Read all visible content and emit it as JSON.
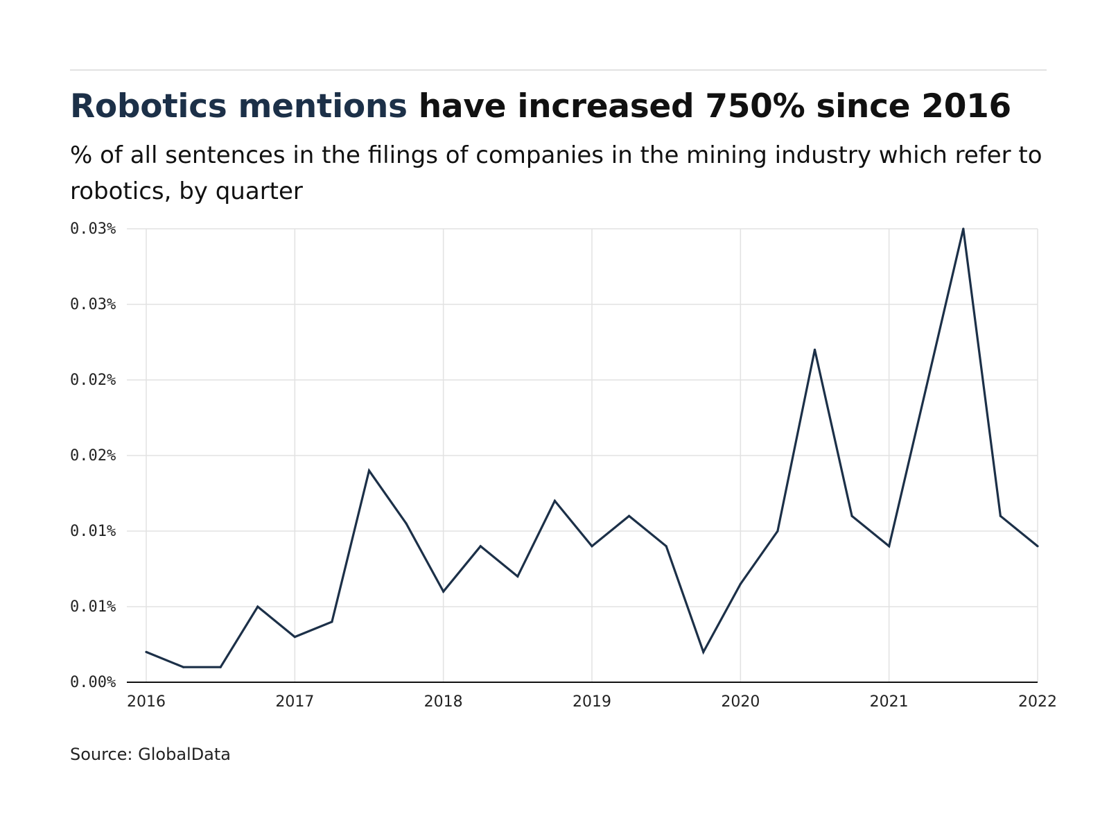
{
  "header": {
    "title_highlight": "Robotics mentions",
    "title_rest": " have increased 750% since 2016",
    "subtitle": "% of all sentences in the filings of companies in the mining industry which refer to robotics, by quarter"
  },
  "footer": {
    "source": "Source: GlobalData"
  },
  "colors": {
    "line": "#1c3048",
    "grid": "#e2e2e2",
    "axis": "#111111",
    "title_highlight": "#1c3048"
  },
  "chart_data": {
    "type": "line",
    "title": "Robotics mentions have increased 750% since 2016",
    "subtitle": "% of all sentences in the filings of companies in the mining industry which refer to robotics, by quarter",
    "xlabel": "",
    "ylabel": "",
    "x_ticks": [
      "2016",
      "2017",
      "2018",
      "2019",
      "2020",
      "2021",
      "2022"
    ],
    "y_ticks": [
      "0.00%",
      "0.01%",
      "0.01%",
      "0.02%",
      "0.02%",
      "0.03%",
      "0.03%"
    ],
    "ylim": [
      0,
      0.03
    ],
    "grid": true,
    "series": [
      {
        "x": [
          "2016 Q1",
          "2016 Q2",
          "2016 Q3",
          "2016 Q4",
          "2017 Q1",
          "2017 Q2",
          "2017 Q3",
          "2017 Q4",
          "2018 Q1",
          "2018 Q2",
          "2018 Q3",
          "2018 Q4",
          "2019 Q1",
          "2019 Q2",
          "2019 Q3",
          "2019 Q4",
          "2020 Q1",
          "2020 Q2",
          "2020 Q3",
          "2020 Q4",
          "2021 Q1",
          "2021 Q2",
          "2021 Q3",
          "2021 Q4",
          "2022 Q1"
        ],
        "values": [
          0.002,
          0.001,
          0.001,
          0.005,
          0.003,
          0.004,
          0.014,
          0.0105,
          0.006,
          0.009,
          0.007,
          0.012,
          0.009,
          0.011,
          0.009,
          0.002,
          0.0065,
          0.01,
          0.022,
          0.011,
          0.009,
          0.0195,
          0.03,
          0.011,
          0.009
        ]
      }
    ]
  }
}
